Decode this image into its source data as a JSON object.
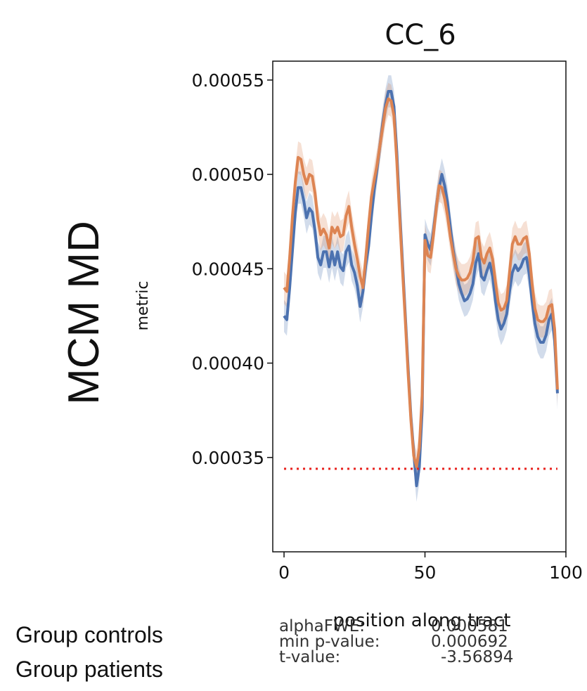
{
  "row_label": "MCM MD",
  "legend": [
    "Group controls",
    "Group patients"
  ],
  "stats": [
    {
      "label": "alphaFWE:",
      "value": "0.000581"
    },
    {
      "label": "min p-value:",
      "value": "0.000692"
    },
    {
      "label": "t-value:",
      "value": "-3.56894"
    }
  ],
  "colors": {
    "controls": "#4c72b0",
    "patients": "#dd8452",
    "threshold": "#e8201c"
  },
  "chart_data": {
    "type": "line",
    "title": "CC_6",
    "xlabel": "position along tract",
    "ylabel": "metric",
    "xlim": [
      -4,
      100
    ],
    "ylim": [
      0.0003,
      0.00056
    ],
    "xticks": [
      0,
      50,
      100
    ],
    "yticks": [
      0.00035,
      0.0004,
      0.00045,
      0.0005,
      0.00055
    ],
    "ytick_labels": [
      "0.00035",
      "0.00040",
      "0.00045",
      "0.00050",
      "0.00055"
    ],
    "grid": false,
    "threshold": {
      "y": 0.000344,
      "x": [
        0,
        97
      ],
      "style": "dotted"
    },
    "series": [
      {
        "key": "controls",
        "x": [
          0,
          1,
          2,
          3,
          4,
          5,
          6,
          7,
          8,
          9,
          10,
          11,
          12,
          13,
          14,
          15,
          16,
          17,
          18,
          19,
          20,
          21,
          22,
          23,
          24,
          25,
          26,
          27,
          28,
          29,
          30,
          31,
          32,
          33,
          34,
          35,
          36,
          37,
          38,
          39,
          40,
          41,
          42,
          43,
          44,
          45,
          46,
          47,
          48,
          49,
          50,
          51,
          52,
          53,
          54,
          55,
          56,
          57,
          58,
          59,
          60,
          61,
          62,
          63,
          64,
          65,
          66,
          67,
          68,
          69,
          70,
          71,
          72,
          73,
          74,
          75,
          76,
          77,
          78,
          79,
          80,
          81,
          82,
          83,
          84,
          85,
          86,
          87,
          88,
          89,
          90,
          91,
          92,
          93,
          94,
          95,
          96,
          97
        ],
        "y": [
          0.000425,
          0.000423,
          0.00044,
          0.00046,
          0.00048,
          0.000493,
          0.000493,
          0.000486,
          0.000477,
          0.000482,
          0.00048,
          0.00047,
          0.000456,
          0.000452,
          0.000459,
          0.000459,
          0.000451,
          0.000459,
          0.000452,
          0.000459,
          0.000451,
          0.000449,
          0.000459,
          0.000462,
          0.000452,
          0.000448,
          0.000441,
          0.00043,
          0.000438,
          0.000452,
          0.000462,
          0.000478,
          0.000492,
          0.000503,
          0.000515,
          0.000527,
          0.000537,
          0.000544,
          0.000544,
          0.000536,
          0.000512,
          0.000482,
          0.000454,
          0.000426,
          0.000398,
          0.000372,
          0.000353,
          0.000335,
          0.000345,
          0.000375,
          0.000468,
          0.000463,
          0.00046,
          0.00047,
          0.000483,
          0.000493,
          0.0005,
          0.000494,
          0.000485,
          0.000472,
          0.00046,
          0.000451,
          0.000442,
          0.000437,
          0.000433,
          0.000434,
          0.000437,
          0.000442,
          0.000453,
          0.000458,
          0.000446,
          0.000444,
          0.000449,
          0.000453,
          0.000446,
          0.000433,
          0.000423,
          0.000418,
          0.000421,
          0.000426,
          0.000438,
          0.000448,
          0.000452,
          0.000449,
          0.000451,
          0.000455,
          0.000456,
          0.000447,
          0.000433,
          0.000421,
          0.000414,
          0.000411,
          0.000411,
          0.000415,
          0.000423,
          0.000426,
          0.000412,
          0.000384
        ]
      },
      {
        "key": "patients",
        "x": [
          0,
          1,
          2,
          3,
          4,
          5,
          6,
          7,
          8,
          9,
          10,
          11,
          12,
          13,
          14,
          15,
          16,
          17,
          18,
          19,
          20,
          21,
          22,
          23,
          24,
          25,
          26,
          27,
          28,
          29,
          30,
          31,
          32,
          33,
          34,
          35,
          36,
          37,
          38,
          39,
          40,
          41,
          42,
          43,
          44,
          45,
          46,
          47,
          48,
          49,
          50,
          51,
          52,
          53,
          54,
          55,
          56,
          57,
          58,
          59,
          60,
          61,
          62,
          63,
          64,
          65,
          66,
          67,
          68,
          69,
          70,
          71,
          72,
          73,
          74,
          75,
          76,
          77,
          78,
          79,
          80,
          81,
          82,
          83,
          84,
          85,
          86,
          87,
          88,
          89,
          90,
          91,
          92,
          93,
          94,
          95,
          96,
          97
        ],
        "y": [
          0.00044,
          0.000438,
          0.000456,
          0.000478,
          0.000496,
          0.000509,
          0.000508,
          0.0005,
          0.000495,
          0.0005,
          0.000499,
          0.00049,
          0.000476,
          0.000468,
          0.000471,
          0.000468,
          0.000461,
          0.000472,
          0.000469,
          0.000472,
          0.000467,
          0.000468,
          0.000478,
          0.000483,
          0.000472,
          0.000463,
          0.000455,
          0.000446,
          0.00044,
          0.000456,
          0.000473,
          0.000488,
          0.000497,
          0.000505,
          0.000515,
          0.000525,
          0.000535,
          0.00054,
          0.000539,
          0.000531,
          0.000507,
          0.000478,
          0.00045,
          0.000423,
          0.000395,
          0.00037,
          0.000351,
          0.000345,
          0.000355,
          0.000383,
          0.000465,
          0.000457,
          0.000456,
          0.000468,
          0.000482,
          0.000494,
          0.000493,
          0.000487,
          0.000478,
          0.000467,
          0.000458,
          0.00045,
          0.000446,
          0.000444,
          0.000444,
          0.000445,
          0.000448,
          0.000454,
          0.000466,
          0.000467,
          0.000456,
          0.000453,
          0.000458,
          0.000461,
          0.000455,
          0.000443,
          0.000432,
          0.000428,
          0.000429,
          0.000433,
          0.000448,
          0.000463,
          0.000467,
          0.000463,
          0.000463,
          0.000466,
          0.000467,
          0.000458,
          0.000442,
          0.000429,
          0.000423,
          0.000422,
          0.000422,
          0.000424,
          0.00043,
          0.000431,
          0.000418,
          0.000386
        ]
      }
    ]
  }
}
